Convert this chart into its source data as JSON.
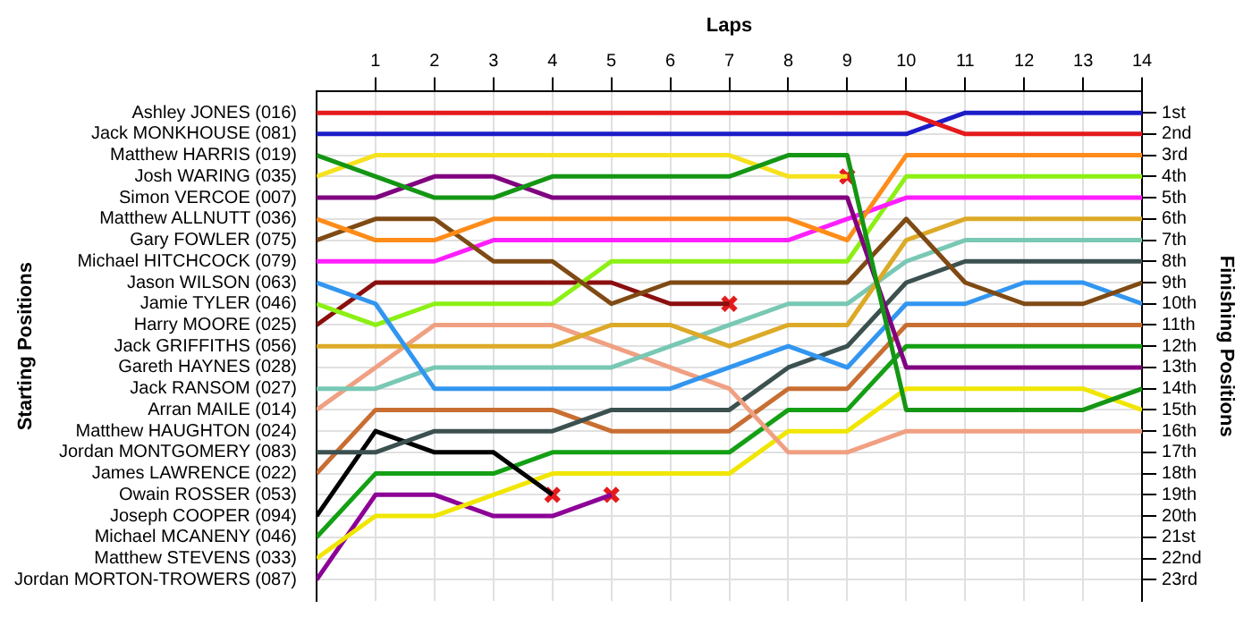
{
  "chart_data": {
    "type": "line",
    "xlabel": "Laps",
    "ylabel": "Finishing Positions",
    "annotations": [
      "Starting Positions",
      "Gareth HAYNES (028)",
      "Matthew HAUGHTON (024)",
      "Owain ROSSER (053)"
    ],
    "x": [
      0,
      1,
      2,
      3,
      4,
      5,
      6,
      7,
      8,
      9,
      10,
      11,
      12,
      13,
      14
    ],
    "xlim": [
      0,
      14
    ],
    "xticks": [
      1,
      2,
      3,
      4,
      5,
      6,
      7,
      8,
      9,
      10,
      11,
      12,
      13,
      14
    ],
    "ylim": [
      24,
      0
    ],
    "yticks": [
      {
        "value": 1,
        "label": "1st"
      },
      {
        "value": 2,
        "label": "2nd"
      },
      {
        "value": 3,
        "label": "3rd"
      },
      {
        "value": 4,
        "label": "4th"
      },
      {
        "value": 5,
        "label": "5th"
      },
      {
        "value": 6,
        "label": "6th"
      },
      {
        "value": 7,
        "label": "7th"
      },
      {
        "value": 8,
        "label": "8th"
      },
      {
        "value": 9,
        "label": "9th"
      },
      {
        "value": 10,
        "label": "10th"
      },
      {
        "value": 11,
        "label": "11th"
      },
      {
        "value": 12,
        "label": "12th"
      },
      {
        "value": 13,
        "label": "13th"
      },
      {
        "value": 14,
        "label": "14th"
      },
      {
        "value": 15,
        "label": "15th"
      },
      {
        "value": 16,
        "label": "16th"
      },
      {
        "value": 17,
        "label": "17th"
      },
      {
        "value": 18,
        "label": "18th"
      },
      {
        "value": 19,
        "label": "19th"
      },
      {
        "value": 20,
        "label": "20th"
      },
      {
        "value": 21,
        "label": "21st"
      },
      {
        "value": 22,
        "label": "22nd"
      },
      {
        "value": 23,
        "label": "23rd"
      }
    ],
    "grid": true,
    "legend": false,
    "marker": "none",
    "line_style": "solid",
    "series": [
      {
        "name": "Ashley JONES (016)",
        "color": "#e41a1c",
        "values": [
          1,
          1,
          1,
          1,
          1,
          1,
          1,
          1,
          1,
          1,
          1,
          2,
          2,
          2,
          2
        ]
      },
      {
        "name": "Jack MONKHOUSE (081)",
        "color": "#1c1cc8",
        "values": [
          2,
          2,
          2,
          2,
          2,
          2,
          2,
          2,
          2,
          2,
          2,
          1,
          1,
          1,
          1
        ]
      },
      {
        "name": "Matthew HARRIS (019)",
        "color": "#149614",
        "values": [
          3,
          4,
          5,
          5,
          4,
          4,
          4,
          4,
          3,
          3,
          15,
          15,
          15,
          15,
          14
        ]
      },
      {
        "name": "Josh WARING (035)",
        "color": "#f5e11e",
        "values": [
          4,
          3,
          3,
          3,
          3,
          3,
          3,
          3,
          4,
          4,
          null,
          null,
          null,
          null,
          null
        ]
      },
      {
        "name": "Simon VERCOE (007)",
        "color": "#800080",
        "values": [
          5,
          5,
          4,
          4,
          5,
          5,
          5,
          5,
          5,
          5,
          13,
          13,
          13,
          13,
          13
        ]
      },
      {
        "name": "Matthew ALLNUTT (036)",
        "color": "#ff8c1a",
        "values": [
          6,
          7,
          7,
          6,
          6,
          6,
          6,
          6,
          6,
          7,
          3,
          3,
          3,
          3,
          3
        ]
      },
      {
        "name": "Gary FOWLER (075)",
        "color": "#7f4a14",
        "values": [
          7,
          6,
          6,
          8,
          8,
          10,
          9,
          9,
          9,
          9,
          6,
          9,
          10,
          10,
          9
        ]
      },
      {
        "name": "Michael HITCHCOCK (079)",
        "color": "#ff1eff",
        "values": [
          8,
          8,
          8,
          7,
          7,
          7,
          7,
          7,
          7,
          6,
          5,
          5,
          5,
          5,
          5
        ]
      },
      {
        "name": "Jason WILSON (063)",
        "color": "#3296f0",
        "values": [
          9,
          10,
          14,
          14,
          14,
          14,
          14,
          13,
          12,
          13,
          10,
          10,
          9,
          9,
          10
        ]
      },
      {
        "name": "Jamie TYLER (046)",
        "color": "#8cf014",
        "values": [
          10,
          11,
          10,
          10,
          10,
          8,
          8,
          8,
          8,
          8,
          4,
          4,
          4,
          4,
          4
        ]
      },
      {
        "name": "Harry MOORE (025)",
        "color": "#8b0f0f",
        "values": [
          11,
          9,
          9,
          9,
          9,
          9,
          10,
          10,
          null,
          null,
          null,
          null,
          null,
          null,
          null
        ]
      },
      {
        "name": "Jack GRIFFITHS (056)",
        "color": "#dcaa28",
        "values": [
          12,
          12,
          12,
          12,
          12,
          11,
          11,
          12,
          11,
          11,
          7,
          6,
          6,
          6,
          6
        ]
      },
      {
        "name": "Jack RANSOM (027)",
        "color": "#78c8b4",
        "values": [
          14,
          14,
          13,
          13,
          13,
          13,
          12,
          11,
          10,
          10,
          8,
          7,
          7,
          7,
          7
        ]
      },
      {
        "name": "Arran MAILE (014)",
        "color": "#f0a082",
        "values": [
          15,
          13,
          11,
          11,
          11,
          12,
          13,
          14,
          17,
          17,
          16,
          16,
          16,
          16,
          16
        ]
      },
      {
        "name": "Jordan MONTGOMERY (083)",
        "color": "#3c5050",
        "values": [
          17,
          17,
          16,
          16,
          16,
          15,
          15,
          15,
          13,
          12,
          9,
          8,
          8,
          8,
          8
        ]
      },
      {
        "name": "James LAWRENCE (022)",
        "color": "#c86e32",
        "values": [
          18,
          15,
          15,
          15,
          15,
          16,
          16,
          16,
          14,
          14,
          11,
          11,
          11,
          11,
          11
        ]
      },
      {
        "name": "Joseph COOPER (094)",
        "color": "#000000",
        "values": [
          20,
          16,
          17,
          17,
          19,
          null,
          null,
          null,
          null,
          null,
          null,
          null,
          null,
          null,
          null
        ]
      },
      {
        "name": "Michael MCANENY (046)",
        "color": "#14a014",
        "values": [
          21,
          18,
          18,
          18,
          17,
          17,
          17,
          17,
          15,
          15,
          12,
          12,
          12,
          12,
          12
        ]
      },
      {
        "name": "Matthew STEVENS (033)",
        "color": "#f0e600",
        "values": [
          22,
          20,
          20,
          19,
          18,
          18,
          18,
          18,
          16,
          16,
          14,
          14,
          14,
          14,
          15
        ]
      },
      {
        "name": "Jordan MORTON-TROWERS (087)",
        "color": "#8c0096",
        "values": [
          23,
          19,
          19,
          20,
          20,
          19,
          null,
          null,
          null,
          null,
          null,
          null,
          null,
          null,
          null
        ]
      },
      {
        "type": "scatter",
        "color": "#e41a1c",
        "marker": "cross",
        "x": [
          9,
          7,
          4,
          5
        ],
        "values": [
          4,
          10,
          19,
          19
        ]
      }
    ]
  }
}
